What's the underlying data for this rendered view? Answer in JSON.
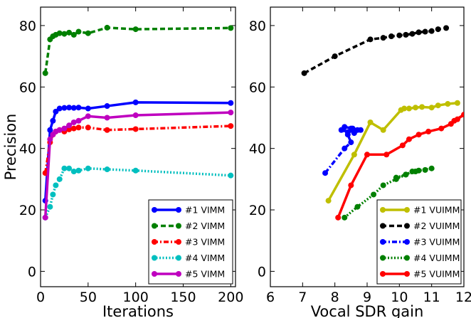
{
  "chart_data": [
    {
      "type": "line",
      "title": "",
      "xlabel": "Iterations",
      "ylabel": "Precision",
      "xlim": [
        0,
        205
      ],
      "ylim": [
        -5,
        86
      ],
      "xticks": [
        0,
        50,
        100,
        150,
        200
      ],
      "xtick_labels": [
        "0",
        "50",
        "100",
        "150",
        "200"
      ],
      "yticks": [
        0,
        20,
        40,
        60,
        80
      ],
      "ytick_labels": [
        "0",
        "20",
        "40",
        "60",
        "80"
      ],
      "grid": false,
      "legend_position": "bottom-right",
      "series": [
        {
          "name": "#1 VIMM",
          "color": "#0000ff",
          "line_style": "solid",
          "x": [
            5,
            10,
            13,
            16,
            20,
            25,
            30,
            35,
            40,
            50,
            70,
            100,
            200
          ],
          "y": [
            23,
            46,
            49,
            52,
            53,
            53.2,
            53.3,
            53.2,
            53.3,
            53,
            53.8,
            55,
            54.8
          ]
        },
        {
          "name": "#2 VIMM",
          "color": "#008000",
          "line_style": "dashed",
          "x": [
            5,
            10,
            13,
            16,
            20,
            25,
            30,
            35,
            40,
            50,
            70,
            100,
            200
          ],
          "y": [
            64.5,
            75.5,
            76.5,
            77,
            77.5,
            77.3,
            77.7,
            77,
            78,
            77.5,
            79.3,
            78.8,
            79.2
          ]
        },
        {
          "name": "#3 VIMM",
          "color": "#ff0000",
          "line_style": "dashdot",
          "x": [
            5,
            10,
            13,
            16,
            20,
            25,
            30,
            35,
            40,
            50,
            70,
            100,
            200
          ],
          "y": [
            32,
            42,
            44.5,
            45.5,
            46,
            45.5,
            46.2,
            46.5,
            46.8,
            46.8,
            46,
            46.3,
            47.3
          ]
        },
        {
          "name": "#4 VIMM",
          "color": "#00bfbf",
          "line_style": "dotted",
          "x": [
            5,
            10,
            13,
            16,
            20,
            25,
            30,
            35,
            40,
            50,
            70,
            100,
            200
          ],
          "y": [
            17.5,
            21,
            25,
            28,
            30,
            33.5,
            33.5,
            32.5,
            32.8,
            33.5,
            33.2,
            32.8,
            31.2
          ]
        },
        {
          "name": "#5 VIMM",
          "color": "#bf00bf",
          "line_style": "solid",
          "x": [
            5,
            10,
            13,
            16,
            20,
            25,
            30,
            35,
            40,
            50,
            70,
            100,
            200
          ],
          "y": [
            17.5,
            43,
            44.5,
            45.5,
            46,
            46.5,
            47.5,
            48.5,
            49,
            50.5,
            50,
            50.8,
            51.7
          ]
        }
      ]
    },
    {
      "type": "line",
      "title": "",
      "xlabel": "Vocal SDR gain",
      "ylabel": "",
      "xlim": [
        6,
        12
      ],
      "ylim": [
        -5,
        86
      ],
      "xticks": [
        6,
        7,
        8,
        9,
        10,
        11,
        12
      ],
      "xtick_labels": [
        "6",
        "7",
        "8",
        "9",
        "10",
        "11",
        "12"
      ],
      "yticks": [
        0,
        20,
        40,
        60,
        80
      ],
      "ytick_labels": [
        "0",
        "20",
        "40",
        "60",
        "80"
      ],
      "grid": false,
      "legend_position": "bottom-right",
      "series": [
        {
          "name": "#1 VUIMM",
          "color": "#bfbf00",
          "line_style": "solid",
          "x": [
            7.8,
            8.6,
            9.1,
            9.5,
            10.05,
            10.15,
            10.3,
            10.5,
            10.7,
            11.0,
            11.2,
            11.5,
            11.8
          ],
          "y": [
            23,
            38,
            48.5,
            46,
            52.5,
            53,
            53,
            53.3,
            53.5,
            53.3,
            54,
            54.5,
            54.8
          ]
        },
        {
          "name": "#2 VUIMM",
          "color": "#000000",
          "line_style": "dashed",
          "x": [
            7.05,
            8.0,
            9.1,
            9.5,
            9.75,
            10.0,
            10.2,
            10.4,
            10.6,
            10.8,
            11.0,
            11.2,
            11.45
          ],
          "y": [
            64.5,
            70,
            75.5,
            76,
            76.5,
            76.8,
            77,
            77.3,
            77.8,
            78,
            78.2,
            78.8,
            79.2
          ]
        },
        {
          "name": "#3 VUIMM",
          "color": "#0000ff",
          "line_style": "dashdot",
          "x": [
            7.7,
            8.3,
            8.5,
            8.4,
            8.6,
            8.2,
            8.4,
            8.7,
            8.5,
            8.8,
            8.3,
            8.55,
            8.6
          ],
          "y": [
            32,
            40,
            42,
            44.5,
            45.5,
            46,
            45.3,
            46,
            46.5,
            46,
            47,
            46.5,
            45
          ]
        },
        {
          "name": "#4 VUIMM",
          "color": "#008000",
          "line_style": "dotted",
          "x": [
            8.3,
            8.7,
            9.2,
            9.5,
            9.9,
            10.2,
            10.5,
            10.8,
            11.0,
            10.6,
            10.4,
            10.2,
            9.9
          ],
          "y": [
            17.5,
            21,
            25,
            28,
            30,
            31.5,
            32.5,
            33,
            33.5,
            32.8,
            32.5,
            31.5,
            30.5
          ]
        },
        {
          "name": "#5 VUIMM",
          "color": "#ff0000",
          "line_style": "solid",
          "x": [
            8.1,
            8.5,
            9.0,
            9.6,
            10.1,
            10.3,
            10.6,
            10.9,
            11.3,
            11.6,
            11.8,
            12.0,
            11.7
          ],
          "y": [
            17.5,
            28,
            38,
            38,
            41,
            43,
            44.5,
            45.5,
            46.5,
            48,
            49.5,
            51,
            49
          ]
        }
      ]
    }
  ]
}
